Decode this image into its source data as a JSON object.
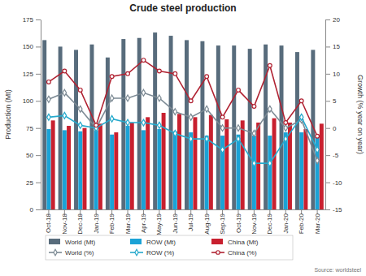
{
  "chart_data": {
    "type": "bar",
    "title": "Crude steel production",
    "y_label": "Production (Mt)",
    "y2_label": "Growth (% year on year)",
    "source": "Source: worldsteel",
    "categories": [
      "Oct-18",
      "Nov-18",
      "Dec-18",
      "Jan-19",
      "Feb-19",
      "Mar-19",
      "Apr-19",
      "May-19",
      "Jun-19",
      "Jul-19",
      "Aug-19",
      "Sep-19",
      "Oct-19",
      "Nov-19",
      "Dec-19",
      "Jan-20",
      "Feb-20",
      "Mar-20"
    ],
    "ylim": [
      0,
      175
    ],
    "yticks": [
      0,
      25,
      50,
      75,
      100,
      125,
      150,
      175
    ],
    "y2lim": [
      -15,
      20
    ],
    "y2ticks": [
      -15,
      -10,
      -5,
      0,
      5,
      10,
      15,
      20
    ],
    "grid": false,
    "legend": "bottom",
    "series": [
      {
        "name": "World (Mt)",
        "type": "bar",
        "color": "#586c7c",
        "values": [
          156,
          150,
          147,
          152,
          140,
          157,
          158,
          163,
          160,
          156,
          155,
          151,
          151,
          148,
          152,
          151,
          145,
          147
        ]
      },
      {
        "name": "ROW (Mt)",
        "type": "bar",
        "color": "#1ba2d6",
        "values": [
          74,
          73,
          72,
          73,
          69,
          77,
          73,
          74,
          72,
          71,
          68,
          68,
          69,
          68,
          68,
          71,
          71,
          68
        ]
      },
      {
        "name": "China (Mt)",
        "type": "bar",
        "color": "#c8202f",
        "values": [
          82,
          77,
          75,
          79,
          71,
          80,
          85,
          89,
          88,
          85,
          87,
          83,
          82,
          80,
          84,
          80,
          74,
          79
        ]
      },
      {
        "name": "World (%)",
        "type": "line",
        "axis": "y2",
        "marker": "diamond",
        "color": "#7c8a94",
        "values": [
          5.3,
          6.5,
          3.5,
          0,
          5.5,
          5.5,
          6.5,
          5.5,
          3,
          2,
          3.5,
          0,
          0,
          -1,
          3.5,
          0,
          1.5,
          -6
        ]
      },
      {
        "name": "ROW (%)",
        "type": "line",
        "axis": "y2",
        "marker": "diamond",
        "color": "#26a9cc",
        "values": [
          2,
          2.3,
          0.5,
          0,
          1.7,
          1,
          1,
          0.5,
          -1,
          -2,
          -2,
          -4,
          -2,
          -6.5,
          -6.5,
          -2,
          2,
          -4
        ]
      },
      {
        "name": "China (%)",
        "type": "line",
        "axis": "y2",
        "marker": "circle",
        "color": "#b02232",
        "values": [
          8.5,
          10.5,
          7,
          0.5,
          9.5,
          10,
          12.5,
          10.5,
          10,
          5,
          9.5,
          2,
          7,
          4,
          11.5,
          1,
          5,
          -1.5
        ]
      }
    ]
  }
}
